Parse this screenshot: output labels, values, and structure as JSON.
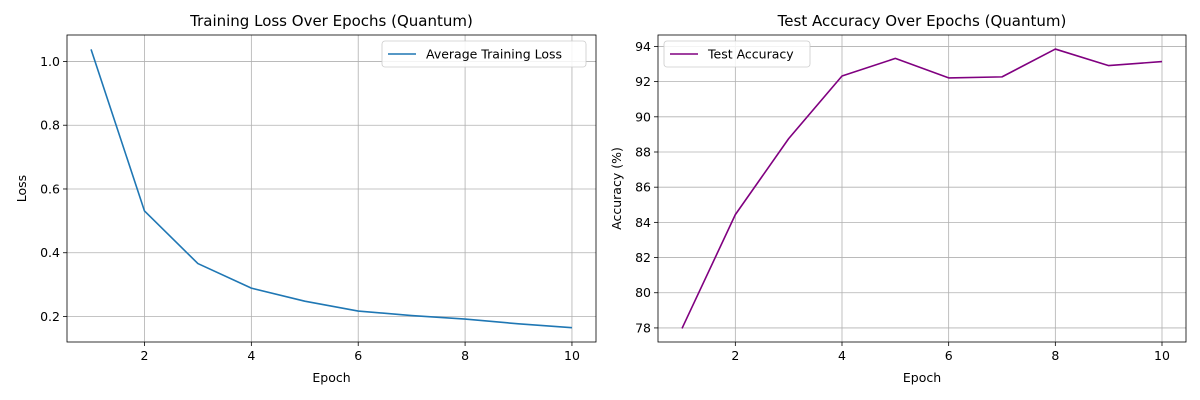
{
  "chart_data": [
    {
      "type": "line",
      "title": "Training Loss Over Epochs (Quantum)",
      "xlabel": "Epoch",
      "ylabel": "Loss",
      "xlim": [
        0.55,
        10.45
      ],
      "ylim": [
        0.12,
        1.083
      ],
      "xticks": [
        2,
        4,
        6,
        8,
        10
      ],
      "yticks": [
        0.2,
        0.4,
        0.6,
        0.8,
        1.0
      ],
      "ytick_labels": [
        "0.2",
        "0.4",
        "0.6",
        "0.8",
        "1.0"
      ],
      "grid": true,
      "legend_position": "top-right",
      "x": [
        1,
        2,
        3,
        4,
        5,
        6,
        7,
        8,
        9,
        10
      ],
      "series": [
        {
          "name": "Average Training Loss",
          "color": "#1f77b4",
          "values": [
            1.038,
            0.531,
            0.366,
            0.289,
            0.248,
            0.217,
            0.203,
            0.192,
            0.177,
            0.165
          ]
        }
      ]
    },
    {
      "type": "line",
      "title": "Test Accuracy Over Epochs (Quantum)",
      "xlabel": "Epoch",
      "ylabel": "Accuracy (%)",
      "xlim": [
        0.55,
        10.45
      ],
      "ylim": [
        77.2,
        94.65
      ],
      "xticks": [
        2,
        4,
        6,
        8,
        10
      ],
      "yticks": [
        78,
        80,
        82,
        84,
        86,
        88,
        90,
        92,
        94
      ],
      "ytick_labels": [
        "78",
        "80",
        "82",
        "84",
        "86",
        "88",
        "90",
        "92",
        "94"
      ],
      "grid": true,
      "legend_position": "top-left",
      "x": [
        1,
        2,
        3,
        4,
        5,
        6,
        7,
        8,
        9,
        10
      ],
      "series": [
        {
          "name": "Test Accuracy",
          "color": "#800080",
          "values": [
            77.97,
            84.44,
            88.76,
            92.32,
            93.32,
            92.21,
            92.27,
            93.85,
            92.91,
            93.14
          ]
        }
      ]
    }
  ]
}
